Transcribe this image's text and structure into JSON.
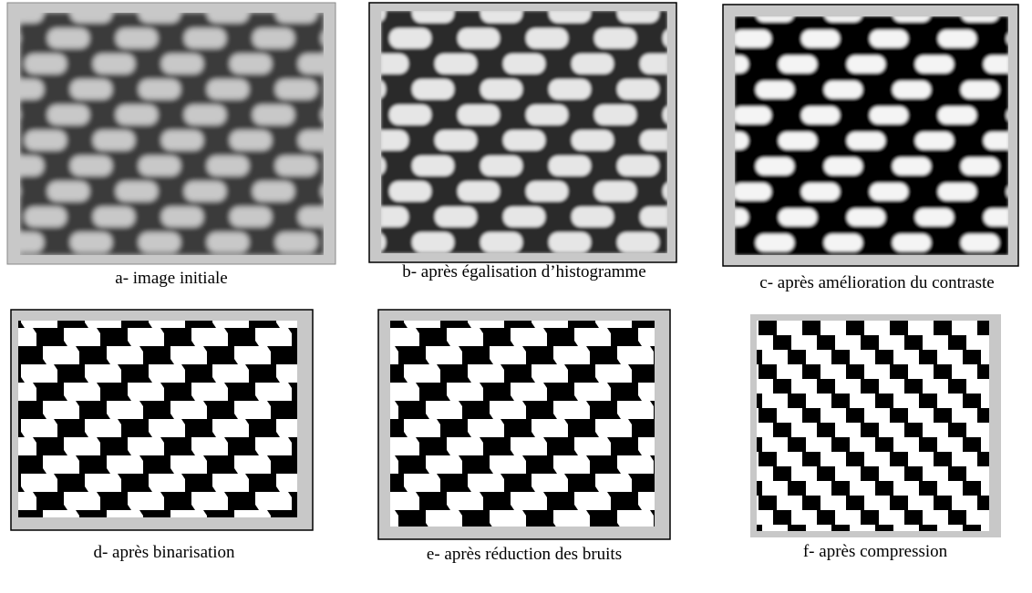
{
  "panels": [
    {
      "caption": "a- image initiale"
    },
    {
      "caption": "b- après égalisation d’histogramme"
    },
    {
      "caption": "c- après amélioration du contraste"
    },
    {
      "caption": "d- après binarisation"
    },
    {
      "caption": "e- après réduction des bruits"
    },
    {
      "caption": "f- après compression"
    }
  ]
}
